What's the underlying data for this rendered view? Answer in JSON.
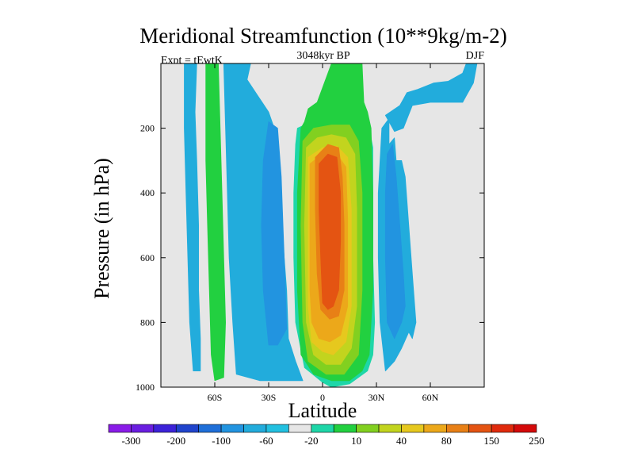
{
  "chart_data": {
    "type": "contour",
    "title": "Meridional Streamfunction (10**9kg/m-2)",
    "left_string": "Expt = tEwtK",
    "center_string": "3048kyr BP",
    "right_string": "DJF",
    "xlabel": "Latitude",
    "ylabel": "Pressure (in hPa)",
    "xlim": [
      -90,
      90
    ],
    "ylim": [
      1000,
      0
    ],
    "x_ticks": [
      {
        "value": -60,
        "label": "60S"
      },
      {
        "value": -30,
        "label": "30S"
      },
      {
        "value": 0,
        "label": "0"
      },
      {
        "value": 30,
        "label": "30N"
      },
      {
        "value": 60,
        "label": "60N"
      }
    ],
    "y_ticks": [
      {
        "value": 200,
        "label": "200"
      },
      {
        "value": 400,
        "label": "400"
      },
      {
        "value": 600,
        "label": "600"
      },
      {
        "value": 800,
        "label": "800"
      },
      {
        "value": 1000,
        "label": "1000"
      }
    ],
    "background_color": "#e6e6e6",
    "colorbar": {
      "colors": [
        "#8a1ce8",
        "#6a1ee0",
        "#3c22d8",
        "#2044cc",
        "#1f6fd8",
        "#2294e0",
        "#22acdc",
        "#22c0e0",
        "#e6e6e6",
        "#1ed6a8",
        "#22d040",
        "#82d020",
        "#c2d41e",
        "#e6c81e",
        "#eca81a",
        "#e88016",
        "#e45412",
        "#e02a0c",
        "#d40a0a"
      ],
      "labels": [
        "-300",
        "-200",
        "-100",
        "-60",
        "-20",
        "10",
        "40",
        "80",
        "150",
        "250"
      ]
    },
    "regions": [
      {
        "name": "sh-band-outer",
        "level": -20,
        "color": "#22acdc",
        "points": [
          [
            -77,
            0
          ],
          [
            -70,
            0
          ],
          [
            -71,
            150
          ],
          [
            -70,
            300
          ],
          [
            -69,
            500
          ],
          [
            -69,
            700
          ],
          [
            -68,
            850
          ],
          [
            -68,
            950
          ],
          [
            -72,
            950
          ],
          [
            -74,
            800
          ],
          [
            -75,
            600
          ],
          [
            -76,
            400
          ],
          [
            -77,
            200
          ]
        ]
      },
      {
        "name": "sh-band-mid",
        "level": 40,
        "color": "#22d040",
        "points": [
          [
            -65,
            0
          ],
          [
            -58,
            0
          ],
          [
            -57,
            200
          ],
          [
            -56,
            400
          ],
          [
            -55,
            600
          ],
          [
            -54,
            800
          ],
          [
            -55,
            970
          ],
          [
            -60,
            980
          ],
          [
            -62,
            900
          ],
          [
            -63,
            700
          ],
          [
            -64,
            500
          ],
          [
            -65,
            300
          ]
        ]
      },
      {
        "name": "sh-band-inner",
        "level": -20,
        "color": "#22acdc",
        "points": [
          [
            -55,
            0
          ],
          [
            -40,
            0
          ],
          [
            -42,
            50
          ],
          [
            -36,
            100
          ],
          [
            -30,
            150
          ],
          [
            -25,
            230
          ],
          [
            -24,
            380
          ],
          [
            -22,
            550
          ],
          [
            -20,
            700
          ],
          [
            -19,
            850
          ],
          [
            -15,
            920
          ],
          [
            -11,
            980
          ],
          [
            -35,
            980
          ],
          [
            -48,
            960
          ],
          [
            -50,
            800
          ],
          [
            -52,
            600
          ],
          [
            -53,
            400
          ],
          [
            -54,
            200
          ]
        ]
      },
      {
        "name": "sh-band-core",
        "level": -60,
        "color": "#2294e0",
        "points": [
          [
            -30,
            180
          ],
          [
            -25,
            200
          ],
          [
            -23,
            350
          ],
          [
            -22,
            500
          ],
          [
            -21,
            650
          ],
          [
            -20,
            820
          ],
          [
            -25,
            870
          ],
          [
            -30,
            870
          ],
          [
            -33,
            700
          ],
          [
            -34,
            500
          ],
          [
            -33,
            300
          ]
        ]
      },
      {
        "name": "nh-band-outer",
        "level": -20,
        "color": "#22acdc",
        "points": [
          [
            33,
            200
          ],
          [
            37,
            170
          ],
          [
            37,
            250
          ],
          [
            40,
            230
          ],
          [
            41,
            300
          ],
          [
            44,
            300
          ],
          [
            46,
            350
          ],
          [
            48,
            500
          ],
          [
            50,
            650
          ],
          [
            52,
            800
          ],
          [
            50,
            850
          ],
          [
            48,
            830
          ],
          [
            44,
            880
          ],
          [
            40,
            920
          ],
          [
            35,
            950
          ],
          [
            32,
            800
          ],
          [
            31,
            600
          ],
          [
            31,
            400
          ]
        ]
      },
      {
        "name": "nh-band-top",
        "level": -20,
        "color": "#22acdc",
        "points": [
          [
            35,
            160
          ],
          [
            43,
            130
          ],
          [
            45,
            110
          ],
          [
            47,
            90
          ],
          [
            53,
            80
          ],
          [
            62,
            60
          ],
          [
            70,
            55
          ],
          [
            78,
            30
          ],
          [
            80,
            0
          ],
          [
            86,
            0
          ],
          [
            84,
            60
          ],
          [
            80,
            100
          ],
          [
            78,
            120
          ],
          [
            70,
            120
          ],
          [
            60,
            120
          ],
          [
            50,
            130
          ],
          [
            45,
            200
          ],
          [
            40,
            210
          ]
        ]
      },
      {
        "name": "nh-band-core",
        "level": -60,
        "color": "#2294e0",
        "points": [
          [
            36,
            280
          ],
          [
            39,
            250
          ],
          [
            41,
            350
          ],
          [
            43,
            500
          ],
          [
            45,
            650
          ],
          [
            46,
            750
          ],
          [
            44,
            800
          ],
          [
            40,
            850
          ],
          [
            36,
            800
          ],
          [
            35,
            600
          ],
          [
            35,
            400
          ]
        ]
      },
      {
        "name": "hc-10",
        "level": 10,
        "color": "#1ed6a8",
        "points": [
          [
            -14,
            200
          ],
          [
            -10,
            190
          ],
          [
            5,
            185
          ],
          [
            20,
            180
          ],
          [
            26,
            200
          ],
          [
            28,
            260
          ],
          [
            28,
            600
          ],
          [
            29,
            800
          ],
          [
            28,
            900
          ],
          [
            25,
            950
          ],
          [
            15,
            990
          ],
          [
            5,
            1000
          ],
          [
            0,
            985
          ],
          [
            -10,
            940
          ],
          [
            -15,
            800
          ],
          [
            -16,
            600
          ],
          [
            -16,
            400
          ],
          [
            -15,
            250
          ]
        ]
      },
      {
        "name": "hc-40",
        "level": 40,
        "color": "#22d040",
        "points": [
          [
            -12,
            200
          ],
          [
            -10,
            180
          ],
          [
            -8,
            140
          ],
          [
            -3,
            120
          ],
          [
            5,
            0
          ],
          [
            22,
            0
          ],
          [
            23,
            120
          ],
          [
            25,
            150
          ],
          [
            27,
            200
          ],
          [
            28,
            400
          ],
          [
            28,
            700
          ],
          [
            26,
            900
          ],
          [
            22,
            950
          ],
          [
            15,
            980
          ],
          [
            5,
            980
          ],
          [
            -5,
            960
          ],
          [
            -12,
            900
          ],
          [
            -14,
            700
          ],
          [
            -14,
            400
          ]
        ]
      },
      {
        "name": "hc-80",
        "level": 80,
        "color": "#82d020",
        "points": [
          [
            -11,
            240
          ],
          [
            -5,
            200
          ],
          [
            5,
            190
          ],
          [
            15,
            190
          ],
          [
            20,
            240
          ],
          [
            22,
            400
          ],
          [
            22,
            700
          ],
          [
            20,
            900
          ],
          [
            12,
            960
          ],
          [
            2,
            960
          ],
          [
            -8,
            920
          ],
          [
            -11,
            800
          ],
          [
            -12,
            500
          ]
        ]
      },
      {
        "name": "hc-100",
        "level": 100,
        "color": "#c2d41e",
        "points": [
          [
            -9,
            260
          ],
          [
            -3,
            230
          ],
          [
            5,
            220
          ],
          [
            13,
            230
          ],
          [
            18,
            280
          ],
          [
            19,
            450
          ],
          [
            19,
            750
          ],
          [
            16,
            880
          ],
          [
            10,
            930
          ],
          [
            2,
            930
          ],
          [
            -5,
            900
          ],
          [
            -9,
            800
          ],
          [
            -10,
            500
          ]
        ]
      },
      {
        "name": "hc-120",
        "level": 120,
        "color": "#e6c81e",
        "points": [
          [
            -8,
            290
          ],
          [
            0,
            260
          ],
          [
            8,
            255
          ],
          [
            14,
            290
          ],
          [
            16,
            450
          ],
          [
            16,
            750
          ],
          [
            13,
            860
          ],
          [
            6,
            900
          ],
          [
            0,
            890
          ],
          [
            -6,
            860
          ],
          [
            -8,
            750
          ],
          [
            -8,
            450
          ]
        ]
      },
      {
        "name": "hc-150",
        "level": 150,
        "color": "#eca81a",
        "points": [
          [
            -7,
            310
          ],
          [
            0,
            280
          ],
          [
            8,
            280
          ],
          [
            13,
            320
          ],
          [
            14,
            480
          ],
          [
            14,
            750
          ],
          [
            10,
            840
          ],
          [
            4,
            860
          ],
          [
            -2,
            850
          ],
          [
            -6,
            800
          ],
          [
            -7,
            700
          ],
          [
            -7,
            450
          ]
        ]
      },
      {
        "name": "hc-200",
        "level": 200,
        "color": "#e88016",
        "points": [
          [
            -4,
            290
          ],
          [
            3,
            250
          ],
          [
            9,
            260
          ],
          [
            11,
            350
          ],
          [
            12,
            500
          ],
          [
            12,
            700
          ],
          [
            9,
            780
          ],
          [
            4,
            790
          ],
          [
            -1,
            760
          ],
          [
            -3,
            650
          ],
          [
            -4,
            450
          ]
        ]
      },
      {
        "name": "hc-250",
        "level": 250,
        "color": "#e45412",
        "points": [
          [
            -2,
            310
          ],
          [
            3,
            280
          ],
          [
            8,
            290
          ],
          [
            10,
            400
          ],
          [
            10,
            550
          ],
          [
            9,
            700
          ],
          [
            6,
            750
          ],
          [
            3,
            760
          ],
          [
            0,
            740
          ],
          [
            -1,
            600
          ],
          [
            -2,
            450
          ]
        ]
      }
    ]
  }
}
